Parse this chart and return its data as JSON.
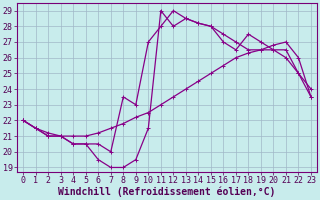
{
  "xlabel": "Windchill (Refroidissement éolien,°C)",
  "xlim": [
    0,
    23
  ],
  "ylim": [
    19,
    29
  ],
  "xticks": [
    0,
    1,
    2,
    3,
    4,
    5,
    6,
    7,
    8,
    9,
    10,
    11,
    12,
    13,
    14,
    15,
    16,
    17,
    18,
    19,
    20,
    21,
    22,
    23
  ],
  "yticks": [
    19,
    20,
    21,
    22,
    23,
    24,
    25,
    26,
    27,
    28,
    29
  ],
  "bg_color": "#c8ecec",
  "grid_color": "#a0b8c8",
  "line_color": "#880088",
  "line1_x": [
    0,
    1,
    2,
    3,
    4,
    5,
    6,
    7,
    8,
    9,
    10,
    11,
    12,
    13,
    14,
    15,
    16,
    17,
    18,
    19,
    20,
    21,
    22,
    23
  ],
  "line1_y": [
    22.0,
    21.5,
    21.0,
    21.0,
    20.5,
    20.5,
    19.5,
    19.0,
    19.0,
    19.5,
    21.5,
    29.0,
    28.0,
    28.5,
    28.2,
    28.0,
    27.5,
    27.0,
    26.5,
    26.5,
    26.5,
    26.5,
    25.0,
    23.5
  ],
  "line2_x": [
    0,
    1,
    2,
    3,
    4,
    5,
    6,
    7,
    8,
    9,
    10,
    11,
    12,
    13,
    14,
    15,
    16,
    17,
    18,
    19,
    20,
    21,
    22,
    23
  ],
  "line2_y": [
    22.0,
    21.5,
    21.0,
    21.0,
    20.5,
    20.5,
    20.5,
    20.0,
    23.5,
    23.0,
    27.0,
    28.0,
    29.0,
    28.5,
    28.2,
    28.0,
    27.0,
    26.5,
    27.5,
    27.0,
    26.5,
    26.0,
    25.0,
    24.0
  ],
  "line3_x": [
    0,
    1,
    2,
    3,
    4,
    5,
    6,
    7,
    8,
    9,
    10,
    11,
    12,
    13,
    14,
    15,
    16,
    17,
    18,
    19,
    20,
    21,
    22,
    23
  ],
  "line3_y": [
    22.0,
    21.5,
    21.2,
    21.0,
    21.0,
    21.0,
    21.2,
    21.5,
    21.8,
    22.2,
    22.5,
    23.0,
    23.5,
    24.0,
    24.5,
    25.0,
    25.5,
    26.0,
    26.3,
    26.5,
    26.8,
    27.0,
    26.0,
    23.5
  ],
  "tick_fontsize": 6,
  "xlabel_fontsize": 7,
  "marker": "P",
  "markersize": 2.0,
  "linewidth": 0.9
}
